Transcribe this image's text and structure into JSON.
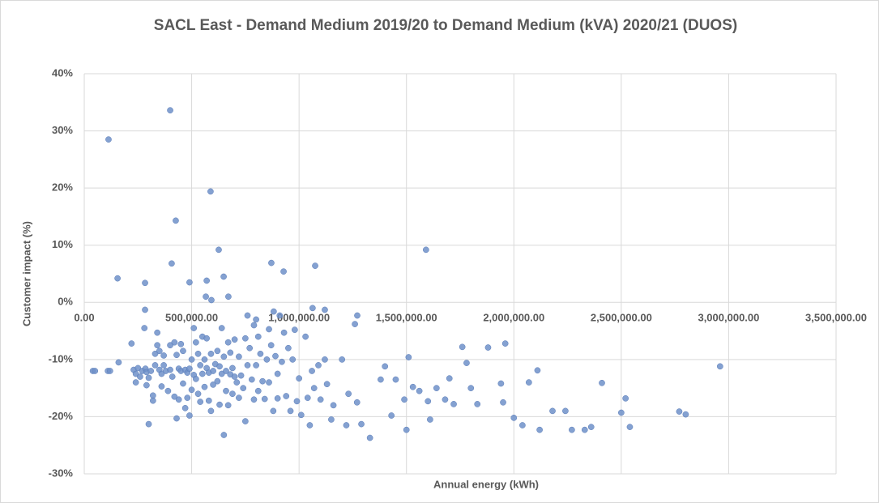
{
  "chart_data": {
    "type": "scatter",
    "title": "SACL East - Demand Medium 2019/20 to Demand Medium (kVA) 2020/21 (DUOS)",
    "x_label": "Annual energy (kWh)",
    "y_label": "Customer impact (%)",
    "color": "#6f90c9",
    "grid": true,
    "xlim": [
      0,
      3500000
    ],
    "ylim": [
      -30,
      40
    ],
    "xticks": [
      {
        "value": 0,
        "label": "0.00"
      },
      {
        "value": 500000,
        "label": "500,000.00"
      },
      {
        "value": 1000000,
        "label": "1,000,000.00"
      },
      {
        "value": 1500000,
        "label": "1,500,000.00"
      },
      {
        "value": 2000000,
        "label": "2,000,000.00"
      },
      {
        "value": 2500000,
        "label": "2,500,000.00"
      },
      {
        "value": 3000000,
        "label": "3,000,000.00"
      },
      {
        "value": 3500000,
        "label": "3,500,000.00"
      }
    ],
    "yticks": [
      {
        "value": -30,
        "label": "-30%"
      },
      {
        "value": -20,
        "label": "-20%"
      },
      {
        "value": -10,
        "label": "-10%"
      },
      {
        "value": 0,
        "label": "0%"
      },
      {
        "value": 10,
        "label": "10%"
      },
      {
        "value": 20,
        "label": "20%"
      },
      {
        "value": 30,
        "label": "30%"
      },
      {
        "value": 40,
        "label": "40%"
      }
    ],
    "x": [
      113000,
      400000,
      588000,
      426000,
      155000,
      283000,
      407000,
      490000,
      570000,
      626000,
      649000,
      671000,
      566000,
      592000,
      871000,
      928000,
      1075000,
      1591000,
      882000,
      283000,
      1063000,
      1120000,
      1271000,
      40000,
      50000,
      110000,
      120000,
      160000,
      220000,
      230000,
      240000,
      240000,
      250000,
      260000,
      270000,
      280000,
      285000,
      290000,
      290000,
      300000,
      300000,
      310000,
      320000,
      320000,
      330000,
      330000,
      340000,
      340000,
      350000,
      350000,
      360000,
      360000,
      370000,
      370000,
      380000,
      390000,
      400000,
      400000,
      410000,
      420000,
      420000,
      430000,
      430000,
      440000,
      440000,
      450000,
      450000,
      460000,
      460000,
      470000,
      470000,
      480000,
      480000,
      490000,
      490000,
      500000,
      500000,
      510000,
      510000,
      520000,
      520000,
      530000,
      530000,
      540000,
      540000,
      550000,
      550000,
      560000,
      560000,
      570000,
      570000,
      580000,
      580000,
      590000,
      590000,
      600000,
      600000,
      610000,
      620000,
      620000,
      630000,
      630000,
      640000,
      640000,
      650000,
      650000,
      660000,
      660000,
      670000,
      670000,
      680000,
      680000,
      690000,
      690000,
      700000,
      700000,
      710000,
      720000,
      720000,
      730000,
      740000,
      750000,
      750000,
      760000,
      760000,
      770000,
      780000,
      790000,
      790000,
      800000,
      800000,
      810000,
      810000,
      820000,
      830000,
      840000,
      850000,
      860000,
      860000,
      870000,
      880000,
      890000,
      900000,
      900000,
      910000,
      920000,
      930000,
      940000,
      950000,
      960000,
      970000,
      980000,
      990000,
      1000000,
      1010000,
      1030000,
      1040000,
      1050000,
      1060000,
      1070000,
      1090000,
      1100000,
      1120000,
      1130000,
      1150000,
      1160000,
      1200000,
      1220000,
      1230000,
      1260000,
      1270000,
      1290000,
      1330000,
      1380000,
      1400000,
      1430000,
      1450000,
      1490000,
      1500000,
      1510000,
      1530000,
      1560000,
      1600000,
      1610000,
      1640000,
      1680000,
      1700000,
      1720000,
      1760000,
      1780000,
      1800000,
      1830000,
      1880000,
      1940000,
      1950000,
      1960000,
      2000000,
      2040000,
      2070000,
      2110000,
      2120000,
      2180000,
      2240000,
      2270000,
      2330000,
      2360000,
      2410000,
      2500000,
      2520000,
      2540000,
      2770000,
      2800000,
      2960000
    ],
    "values": [
      28.5,
      33.6,
      19.4,
      14.3,
      4.2,
      3.4,
      6.8,
      3.5,
      3.8,
      9.2,
      4.5,
      1.0,
      1.0,
      0.4,
      6.9,
      5.4,
      6.4,
      9.2,
      -1.6,
      -1.3,
      -1.0,
      -1.3,
      -2.3,
      -12,
      -12,
      -12,
      -12,
      -10.5,
      -7.2,
      -11.8,
      -12.5,
      -14,
      -11.5,
      -13,
      -12,
      -4.5,
      -11.6,
      -12.2,
      -14.5,
      -13.2,
      -21.3,
      -12,
      -16.3,
      -17.2,
      -9,
      -11,
      -5.3,
      -7.5,
      -8.5,
      -11.8,
      -12.5,
      -14.7,
      -9.3,
      -11,
      -12,
      -15.5,
      -7.5,
      -11.8,
      -13,
      -7,
      -16.5,
      -9.2,
      -20.3,
      -11.6,
      -17,
      -7.3,
      -12,
      -8.5,
      -14.2,
      -11.8,
      -18.5,
      -12.3,
      -16.7,
      -11.6,
      -19.8,
      -10,
      -15.3,
      -12.7,
      -4.5,
      -7,
      -13.4,
      -9,
      -16,
      -11,
      -17.4,
      -6,
      -12.5,
      -10,
      -14.8,
      -6.3,
      -11.5,
      -12.3,
      -17.2,
      -9,
      -19,
      -12,
      -14.4,
      -10.8,
      -8.5,
      -13.8,
      -11.2,
      -17.9,
      -4.5,
      -12.5,
      -9.5,
      -23.2,
      -12,
      -15.5,
      -7,
      -18,
      -8.8,
      -12.6,
      -11.5,
      -16,
      -6.5,
      -13,
      -14,
      -9.5,
      -16.7,
      -12.8,
      -15,
      -6.3,
      -20.8,
      -2.3,
      -11,
      -8,
      -13.5,
      -4,
      -17,
      -3,
      -11,
      -6,
      -15.5,
      -9,
      -13.8,
      -16.9,
      -10,
      -4.7,
      -14,
      -7.5,
      -19,
      -9.4,
      -12.5,
      -16.8,
      -2.3,
      -10.4,
      -5.3,
      -16.4,
      -8,
      -19,
      -10,
      -4.8,
      -17.3,
      -13.3,
      -19.7,
      -6,
      -16.7,
      -21.5,
      -12,
      -15,
      -11,
      -17,
      -10,
      -14.3,
      -20.5,
      -18,
      -10,
      -21.5,
      -16,
      -3.8,
      -17.5,
      -21.3,
      -23.7,
      -13.5,
      -11.2,
      -19.8,
      -13.5,
      -17,
      -22.3,
      -9.6,
      -14.8,
      -15.5,
      -17.3,
      -20.5,
      -15,
      -17,
      -13.3,
      -17.8,
      -7.8,
      -10.6,
      -15,
      -17.8,
      -7.9,
      -14.2,
      -17.5,
      -7.2,
      -20.2,
      -21.5,
      -14,
      -11.9,
      -22.3,
      -19,
      -19,
      -22.3,
      -22.3,
      -21.8,
      -14.1,
      -19.3,
      -16.8,
      -21.8,
      -19.1,
      -19.6,
      -11.2
    ]
  }
}
